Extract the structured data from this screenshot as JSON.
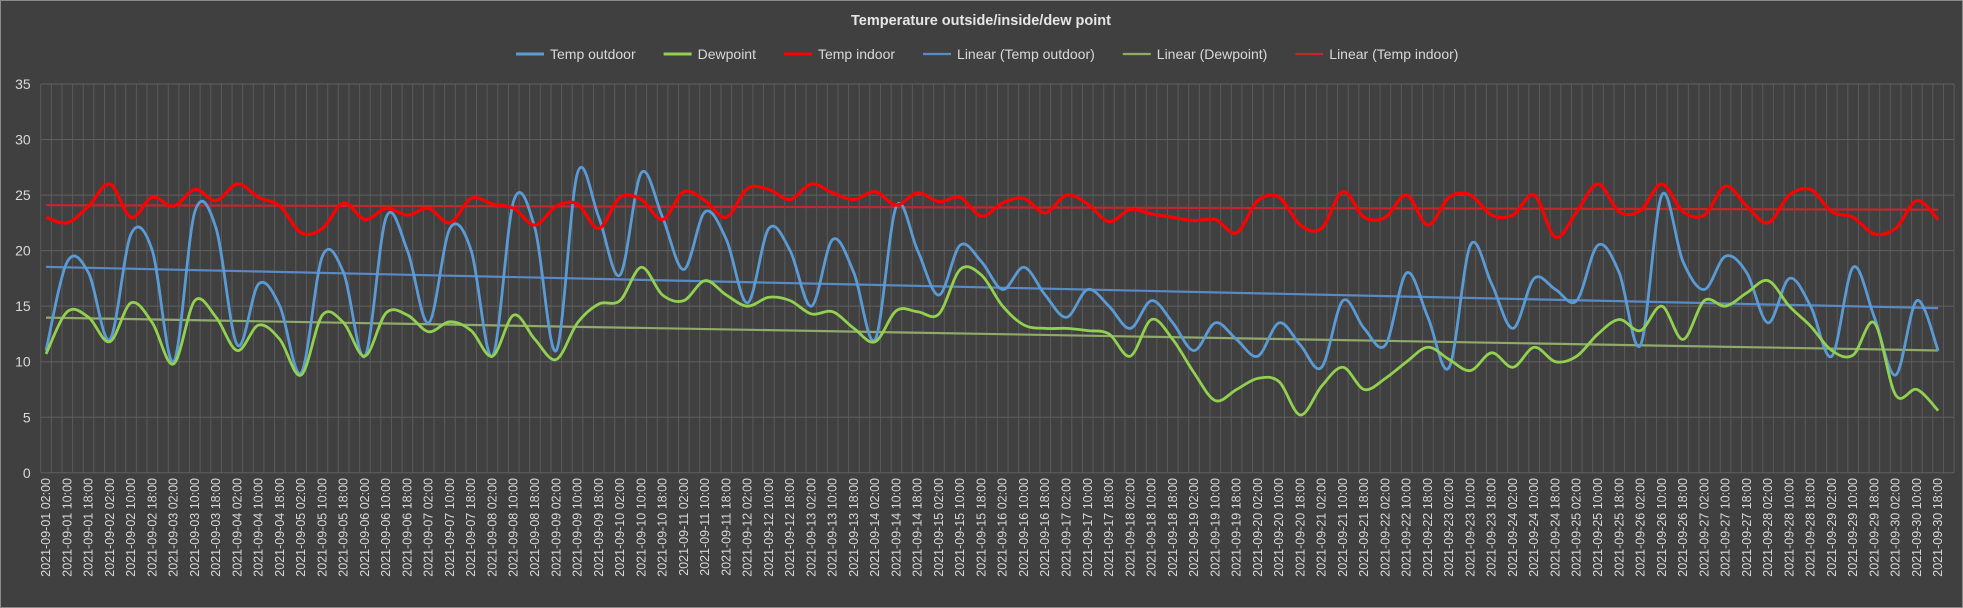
{
  "chart_data": {
    "type": "line",
    "title": "Temperature outside/inside/dew point",
    "xlabel": "",
    "ylabel": "",
    "ylim": [
      0,
      35
    ],
    "yticks": [
      0,
      5,
      10,
      15,
      20,
      25,
      30,
      35
    ],
    "grid": true,
    "legend_position": "top",
    "smoothed": true,
    "x": [
      "2021-09-01 02:00",
      "2021-09-01 10:00",
      "2021-09-01 18:00",
      "2021-09-02 02:00",
      "2021-09-02 10:00",
      "2021-09-02 18:00",
      "2021-09-03 02:00",
      "2021-09-03 10:00",
      "2021-09-03 18:00",
      "2021-09-04 02:00",
      "2021-09-04 10:00",
      "2021-09-04 18:00",
      "2021-09-05 02:00",
      "2021-09-05 10:00",
      "2021-09-05 18:00",
      "2021-09-06 02:00",
      "2021-09-06 10:00",
      "2021-09-06 18:00",
      "2021-09-07 02:00",
      "2021-09-07 10:00",
      "2021-09-07 18:00",
      "2021-09-08 02:00",
      "2021-09-08 10:00",
      "2021-09-08 18:00",
      "2021-09-09 02:00",
      "2021-09-09 10:00",
      "2021-09-09 18:00",
      "2021-09-10 02:00",
      "2021-09-10 10:00",
      "2021-09-10 18:00",
      "2021-09-11 02:00",
      "2021-09-11 10:00",
      "2021-09-11 18:00",
      "2021-09-12 02:00",
      "2021-09-12 10:00",
      "2021-09-12 18:00",
      "2021-09-13 02:00",
      "2021-09-13 10:00",
      "2021-09-13 18:00",
      "2021-09-14 02:00",
      "2021-09-14 10:00",
      "2021-09-14 18:00",
      "2021-09-15 02:00",
      "2021-09-15 10:00",
      "2021-09-15 18:00",
      "2021-09-16 02:00",
      "2021-09-16 10:00",
      "2021-09-16 18:00",
      "2021-09-17 02:00",
      "2021-09-17 10:00",
      "2021-09-17 18:00",
      "2021-09-18 02:00",
      "2021-09-18 10:00",
      "2021-09-18 18:00",
      "2021-09-19 02:00",
      "2021-09-19 10:00",
      "2021-09-19 18:00",
      "2021-09-20 02:00",
      "2021-09-20 10:00",
      "2021-09-20 18:00",
      "2021-09-21 02:00",
      "2021-09-21 10:00",
      "2021-09-21 18:00",
      "2021-09-22 02:00",
      "2021-09-22 10:00",
      "2021-09-22 18:00",
      "2021-09-23 02:00",
      "2021-09-23 10:00",
      "2021-09-23 18:00",
      "2021-09-24 02:00",
      "2021-09-24 10:00",
      "2021-09-24 18:00",
      "2021-09-25 02:00",
      "2021-09-25 10:00",
      "2021-09-25 18:00",
      "2021-09-26 02:00",
      "2021-09-26 10:00",
      "2021-09-26 18:00",
      "2021-09-27 02:00",
      "2021-09-27 10:00",
      "2021-09-27 18:00",
      "2021-09-28 02:00",
      "2021-09-28 10:00",
      "2021-09-28 18:00",
      "2021-09-29 02:00",
      "2021-09-29 10:00",
      "2021-09-29 18:00",
      "2021-09-30 02:00",
      "2021-09-30 10:00",
      "2021-09-30 18:00"
    ],
    "series": [
      {
        "name": "Temp outdoor",
        "color": "#5b9bd5",
        "values": [
          11,
          19,
          18,
          12,
          21.5,
          20,
          10,
          23.5,
          22,
          11.5,
          17,
          15,
          9,
          19.5,
          18,
          10.5,
          23,
          20,
          13.5,
          22,
          20,
          10.5,
          24.5,
          22,
          11,
          27,
          23,
          17.8,
          27,
          23,
          18.3,
          23.5,
          21,
          15.3,
          22,
          20,
          15,
          21,
          18,
          12,
          24,
          20,
          16,
          20.5,
          19,
          16.5,
          18.5,
          16,
          14,
          16.5,
          15,
          13,
          15.5,
          13.5,
          11,
          13.5,
          12,
          10.5,
          13.5,
          11.5,
          9.5,
          15.5,
          13,
          11.5,
          18,
          14,
          9.5,
          20.5,
          17,
          13,
          17.5,
          16.5,
          15.5,
          20.5,
          18,
          11.5,
          25,
          19,
          16.5,
          19.5,
          18,
          13.5,
          17.5,
          15,
          10.5,
          18.5,
          14,
          8.8,
          15.5,
          11
        ]
      },
      {
        "name": "Dewpoint",
        "color": "#92d050",
        "values": [
          10.7,
          14.5,
          14,
          11.8,
          15.3,
          13.5,
          9.8,
          15.5,
          14,
          11,
          13.3,
          12,
          8.8,
          14.2,
          13.5,
          10.5,
          14.4,
          14.2,
          12.7,
          13.6,
          12.8,
          10.5,
          14.2,
          12,
          10.2,
          13.5,
          15.2,
          15.5,
          18.5,
          16,
          15.5,
          17.3,
          16,
          15,
          15.8,
          15.5,
          14.3,
          14.5,
          13,
          11.8,
          14.6,
          14.5,
          14.3,
          18.3,
          17.8,
          15,
          13.3,
          13,
          13,
          12.8,
          12.5,
          10.5,
          13.8,
          12,
          9,
          6.5,
          7.5,
          8.5,
          8.2,
          5.2,
          7.8,
          9.5,
          7.5,
          8.5,
          10,
          11.3,
          10.2,
          9.2,
          10.8,
          9.5,
          11.3,
          10,
          10.5,
          12.5,
          13.8,
          12.8,
          15,
          12,
          15.5,
          15,
          16.2,
          17.3,
          15,
          13.2,
          11,
          10.6,
          13.5,
          7,
          7.5,
          5.6
        ]
      },
      {
        "name": "Temp indoor",
        "color": "#ff0000",
        "values": [
          23,
          22.5,
          24,
          26,
          23,
          24.8,
          24,
          25.5,
          24.5,
          26,
          24.8,
          24,
          21.6,
          22,
          24.3,
          22.8,
          23.8,
          23.2,
          23.8,
          22.5,
          24.7,
          24.2,
          23.8,
          22.3,
          24,
          24.2,
          22,
          24.8,
          24.6,
          22.8,
          25.3,
          24.5,
          23,
          25.6,
          25.5,
          24.6,
          26,
          25.2,
          24.6,
          25.3,
          24.1,
          25.2,
          24.4,
          24.8,
          23.1,
          24.3,
          24.7,
          23.4,
          25,
          24.2,
          22.6,
          23.7,
          23.3,
          23,
          22.7,
          22.8,
          21.6,
          24.5,
          24.8,
          22.3,
          22,
          25.3,
          23,
          23,
          25,
          22.3,
          24.8,
          25,
          23.2,
          23.2,
          25,
          21.2,
          23.5,
          26,
          23.5,
          23.6,
          26,
          23.5,
          23.2,
          25.8,
          24,
          22.5,
          25,
          25.5,
          23.5,
          23,
          21.5,
          22,
          24.5,
          22.8
        ]
      }
    ],
    "trendlines": [
      {
        "name": "Linear (Temp outdoor)",
        "of": "Temp outdoor",
        "type": "linear",
        "color": "#5a8ac6"
      },
      {
        "name": "Linear (Dewpoint)",
        "of": "Dewpoint",
        "type": "linear",
        "color": "#8faa6a"
      },
      {
        "name": "Linear (Temp indoor)",
        "of": "Temp indoor",
        "type": "linear",
        "color": "#c0282d"
      }
    ]
  }
}
